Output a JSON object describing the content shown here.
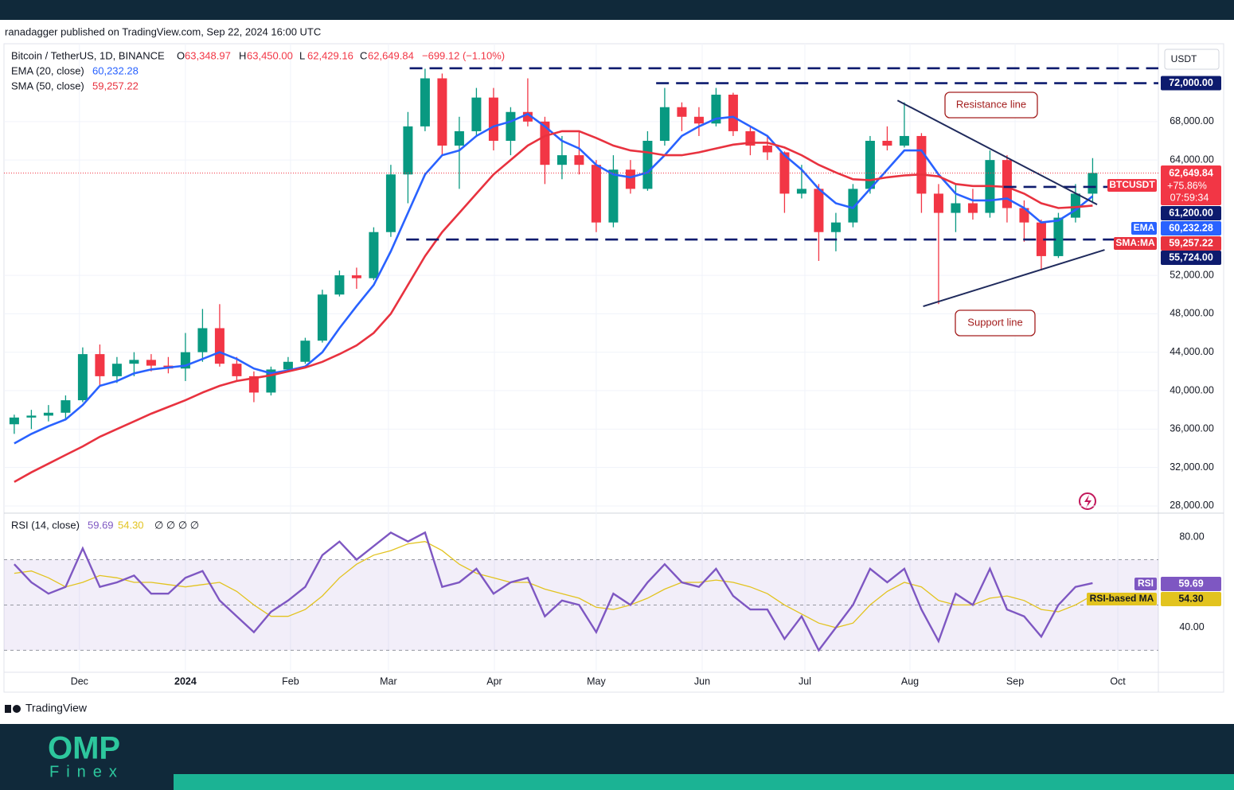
{
  "publisher": "ranadagger published on TradingView.com, Sep 22, 2024 16:00 UTC",
  "footer": "TradingView",
  "branding": {
    "logo": "OMP",
    "sub": "Finex"
  },
  "chart_data": {
    "type": "candlestick",
    "title": "Bitcoin / TetherUS, 1D, BINANCE",
    "ohlc_header": [
      [
        "O",
        "63,348.97"
      ],
      [
        "H",
        "63,450.00"
      ],
      [
        "L",
        "62,429.16"
      ],
      [
        "C",
        "62,649.84"
      ],
      [
        "",
        "−699.12 (−1.10%)"
      ]
    ],
    "currency": "USDT",
    "up_color": "#089981",
    "down_color": "#f23645",
    "xlim": [
      -0.6,
      66.84
    ],
    "xticks": [
      {
        "value": 3.81,
        "label": "Dec"
      },
      {
        "value": 10.0,
        "label": "2024"
      },
      {
        "value": 16.14,
        "label": "Feb"
      },
      {
        "value": 21.86,
        "label": "Mar"
      },
      {
        "value": 28.05,
        "label": "Apr"
      },
      {
        "value": 34.0,
        "label": "May"
      },
      {
        "value": 40.19,
        "label": "Jun"
      },
      {
        "value": 46.19,
        "label": "Jul"
      },
      {
        "value": 52.33,
        "label": "Aug"
      },
      {
        "value": 58.47,
        "label": "Sep"
      },
      {
        "value": 64.47,
        "label": "Oct"
      }
    ],
    "ylim": [
      27250,
      76100
    ],
    "yticks": [
      {
        "value": 28000,
        "label": "28,000.00"
      },
      {
        "value": 32000,
        "label": "32,000.00"
      },
      {
        "value": 36000,
        "label": "36,000.00"
      },
      {
        "value": 40000,
        "label": "40,000.00"
      },
      {
        "value": 44000,
        "label": "44,000.00"
      },
      {
        "value": 48000,
        "label": "48,000.00"
      },
      {
        "value": 52000,
        "label": "52,000.00"
      },
      {
        "value": 64000,
        "label": "64,000.00"
      },
      {
        "value": 68000,
        "label": "68,000.00"
      }
    ],
    "grid": true,
    "open": [
      36500,
      37200,
      37400,
      37700,
      39000,
      43800,
      41500,
      42800,
      43200,
      42600,
      42300,
      44000,
      46500,
      42800,
      41500,
      39800,
      42200,
      43000,
      45200,
      50000,
      52000,
      51700,
      56500,
      62500,
      67500,
      72500,
      65500,
      67000,
      70500,
      66000,
      69000,
      68000,
      63500,
      64500,
      63500,
      57500,
      63000,
      61000,
      66000,
      69500,
      68500,
      67800,
      70800,
      67000,
      65500,
      64800,
      60500,
      61000,
      56500,
      57500,
      61000,
      66000,
      65500,
      66500,
      60500,
      58500,
      59500,
      58500,
      64000,
      59000,
      57500,
      54000,
      58000,
      60500
    ],
    "high": [
      37500,
      38000,
      38500,
      39500,
      44500,
      44800,
      43500,
      44000,
      43800,
      43500,
      46000,
      48500,
      49000,
      43500,
      42000,
      42500,
      43500,
      45500,
      50500,
      52500,
      52800,
      57000,
      63500,
      69000,
      73500,
      73000,
      68500,
      71500,
      71500,
      69500,
      72500,
      68500,
      66500,
      67000,
      64000,
      64500,
      64000,
      67000,
      71500,
      70000,
      69500,
      71500,
      71000,
      67500,
      66500,
      64900,
      63500,
      61500,
      58500,
      61500,
      66500,
      67500,
      70000,
      66800,
      61500,
      61500,
      61000,
      65000,
      64500,
      59800,
      57800,
      58500,
      61500,
      64200
    ],
    "low": [
      35500,
      36000,
      36800,
      37000,
      38800,
      40500,
      40800,
      41500,
      42000,
      41800,
      41000,
      43000,
      42500,
      41000,
      38800,
      39500,
      42000,
      42800,
      45000,
      49800,
      50600,
      51500,
      56000,
      59500,
      67000,
      64500,
      61000,
      66500,
      65000,
      64500,
      67500,
      61500,
      62000,
      62500,
      56500,
      57000,
      60500,
      60800,
      65500,
      67000,
      66500,
      67500,
      66500,
      64500,
      64000,
      58500,
      60000,
      53500,
      54500,
      57000,
      60500,
      65000,
      65300,
      58500,
      49000,
      56500,
      57800,
      58000,
      57500,
      55500,
      52500,
      53800,
      57500,
      59500
    ],
    "close": [
      37200,
      37400,
      37700,
      39000,
      43800,
      41500,
      42800,
      43200,
      42600,
      42300,
      44000,
      46500,
      42800,
      41500,
      39800,
      42200,
      43000,
      45200,
      50000,
      52000,
      51700,
      56500,
      62500,
      67500,
      72500,
      65500,
      67000,
      70500,
      66000,
      69000,
      68000,
      63500,
      64500,
      63500,
      57500,
      63000,
      61000,
      66000,
      69500,
      68500,
      67800,
      70800,
      67000,
      65500,
      64800,
      60500,
      61000,
      56500,
      57500,
      61000,
      66000,
      65500,
      66500,
      60500,
      58500,
      59500,
      58500,
      64000,
      59000,
      57500,
      54000,
      58000,
      60500,
      62650
    ],
    "overlays": [
      {
        "name": "EMA (20, close)",
        "badge": "EMA",
        "color": "#2962ff",
        "last_value": 60232.28,
        "last_label": "60,232.28",
        "values": [
          34500,
          35500,
          36300,
          37000,
          38500,
          40500,
          41000,
          41800,
          42200,
          42400,
          42600,
          43300,
          44000,
          43300,
          42300,
          41800,
          42100,
          42500,
          44000,
          46500,
          48800,
          51000,
          54500,
          58500,
          62500,
          64500,
          65000,
          66500,
          67500,
          68000,
          68800,
          67500,
          66000,
          65200,
          63500,
          62500,
          62200,
          62700,
          64500,
          66500,
          67500,
          68300,
          68500,
          67500,
          66500,
          64500,
          63000,
          61000,
          59500,
          59000,
          61000,
          63000,
          65000,
          65000,
          62500,
          60500,
          59800,
          59800,
          60000,
          59000,
          57500,
          57700,
          58800,
          60232.28
        ]
      },
      {
        "name": "SMA (50, close)",
        "badge": "SMA:MA",
        "color": "#e8323f",
        "last_value": 59257.22,
        "last_label": "59,257.22",
        "values": [
          30500,
          31500,
          32400,
          33300,
          34200,
          35200,
          36000,
          36800,
          37600,
          38300,
          39000,
          39800,
          40500,
          41000,
          41300,
          41600,
          42000,
          42400,
          43000,
          43800,
          44700,
          46000,
          48000,
          51000,
          54000,
          56500,
          58500,
          60500,
          62500,
          64000,
          65500,
          66500,
          67000,
          67000,
          66300,
          65500,
          65000,
          64800,
          64500,
          64500,
          64800,
          65200,
          65600,
          65800,
          65800,
          65300,
          64500,
          63500,
          62700,
          62000,
          61900,
          62200,
          62400,
          62500,
          62300,
          61500,
          61300,
          61300,
          61200,
          60500,
          59500,
          59000,
          59100,
          59257.22
        ]
      }
    ],
    "last_price": {
      "symbol": "BTCUSDT",
      "value": 62649.84,
      "label": "62,649.84",
      "change": "+75.86%",
      "countdown": "07:59:34"
    },
    "levels": [
      {
        "value": 73550,
        "start": 23.1
      },
      {
        "value": 72000,
        "start": 37.5,
        "label": "72,000.00"
      },
      {
        "value": 61200,
        "start": 57.8,
        "label": "61,200.00"
      },
      {
        "value": 55724,
        "start": 22.9,
        "label": "55,724.00"
      }
    ],
    "trendlines": [
      {
        "name": "Resistance line",
        "x": [
          51.6,
          63.26
        ],
        "y": [
          70200,
          59370
        ]
      },
      {
        "name": "Support line",
        "x": [
          53.1,
          63.7
        ],
        "y": [
          48770,
          54650
        ]
      }
    ],
    "rsi": {
      "title": "RSI (14, close)",
      "nulls": "∅ ∅ ∅ ∅",
      "ylim": [
        21,
        88.8
      ],
      "yticks": [
        {
          "value": 40,
          "label": "40.00"
        },
        {
          "value": 80,
          "label": "80.00"
        }
      ],
      "bands": [
        30,
        50,
        70
      ],
      "series": [
        {
          "name": "RSI",
          "color": "#7e57c2",
          "last_value": 59.69,
          "last_label": "59.69",
          "values": [
            68,
            60,
            55,
            58,
            75,
            58,
            60,
            63,
            55,
            55,
            62,
            65,
            52,
            45,
            38,
            47,
            52,
            58,
            72,
            78,
            70,
            76,
            82,
            78,
            82,
            58,
            60,
            66,
            55,
            60,
            62,
            45,
            52,
            50,
            38,
            55,
            50,
            60,
            68,
            60,
            58,
            66,
            54,
            48,
            48,
            35,
            45,
            30,
            40,
            50,
            66,
            60,
            66,
            48,
            34,
            55,
            50,
            66,
            48,
            45,
            36,
            50,
            58,
            59.69
          ]
        },
        {
          "name": "RSI-based MA",
          "color": "#e2c31f",
          "last_value": 54.3,
          "last_label": "54.30",
          "values": [
            64,
            65,
            62,
            58,
            60,
            63,
            62,
            60,
            60,
            59,
            58,
            59,
            60,
            56,
            50,
            45,
            45,
            48,
            54,
            62,
            68,
            72,
            74,
            77,
            78,
            74,
            68,
            64,
            62,
            60,
            60,
            57,
            55,
            53,
            49,
            48,
            50,
            53,
            57,
            60,
            60,
            61,
            60,
            58,
            55,
            50,
            46,
            42,
            40,
            42,
            50,
            56,
            60,
            58,
            52,
            50,
            50,
            53,
            54,
            52,
            48,
            47,
            50,
            54.3
          ]
        }
      ]
    }
  }
}
